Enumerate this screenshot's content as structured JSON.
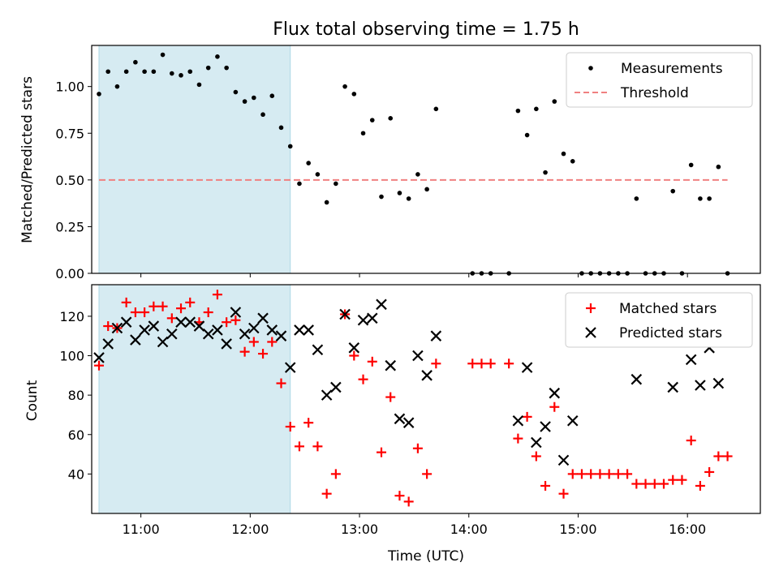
{
  "chart_data": [
    {
      "type": "scatter",
      "title": "Flux total observing time = 1.75 h",
      "xlabel": "",
      "ylabel": "Matched/Predicted stars",
      "xlim": [
        "10:33",
        "16:40"
      ],
      "ylim": [
        0,
        1.22
      ],
      "yticks": [
        "0.00",
        "0.25",
        "0.50",
        "0.75",
        "1.00"
      ],
      "legend_position": "top-right",
      "shaded_region": {
        "start": "10:37",
        "end": "12:22",
        "color": "#add8e6"
      },
      "series": [
        {
          "name": "Measurements",
          "marker": "dot",
          "color": "#000000",
          "points": [
            [
              "10:37",
              0.96
            ],
            [
              "10:42",
              1.08
            ],
            [
              "10:47",
              1.0
            ],
            [
              "10:52",
              1.08
            ],
            [
              "10:57",
              1.13
            ],
            [
              "11:02",
              1.08
            ],
            [
              "11:07",
              1.08
            ],
            [
              "11:12",
              1.17
            ],
            [
              "11:17",
              1.07
            ],
            [
              "11:22",
              1.06
            ],
            [
              "11:27",
              1.08
            ],
            [
              "11:32",
              1.01
            ],
            [
              "11:37",
              1.1
            ],
            [
              "11:42",
              1.16
            ],
            [
              "11:47",
              1.1
            ],
            [
              "11:52",
              0.97
            ],
            [
              "11:57",
              0.92
            ],
            [
              "12:02",
              0.94
            ],
            [
              "12:07",
              0.85
            ],
            [
              "12:12",
              0.95
            ],
            [
              "12:17",
              0.78
            ],
            [
              "12:22",
              0.68
            ],
            [
              "12:27",
              0.48
            ],
            [
              "12:32",
              0.59
            ],
            [
              "12:37",
              0.53
            ],
            [
              "12:42",
              0.38
            ],
            [
              "12:47",
              0.48
            ],
            [
              "12:52",
              1.0
            ],
            [
              "12:57",
              0.96
            ],
            [
              "13:02",
              0.75
            ],
            [
              "13:07",
              0.82
            ],
            [
              "13:12",
              0.41
            ],
            [
              "13:17",
              0.83
            ],
            [
              "13:22",
              0.43
            ],
            [
              "13:27",
              0.4
            ],
            [
              "13:32",
              0.53
            ],
            [
              "13:37",
              0.45
            ],
            [
              "13:42",
              0.88
            ],
            [
              "14:02",
              0.0
            ],
            [
              "14:07",
              0.0
            ],
            [
              "14:12",
              0.0
            ],
            [
              "14:22",
              0.0
            ],
            [
              "14:27",
              0.87
            ],
            [
              "14:32",
              0.74
            ],
            [
              "14:37",
              0.88
            ],
            [
              "14:42",
              0.54
            ],
            [
              "14:47",
              0.92
            ],
            [
              "14:52",
              0.64
            ],
            [
              "14:57",
              0.6
            ],
            [
              "15:02",
              0.0
            ],
            [
              "15:07",
              0.0
            ],
            [
              "15:12",
              0.0
            ],
            [
              "15:17",
              0.0
            ],
            [
              "15:22",
              0.0
            ],
            [
              "15:27",
              0.0
            ],
            [
              "15:32",
              0.4
            ],
            [
              "15:37",
              0.0
            ],
            [
              "15:42",
              0.0
            ],
            [
              "15:47",
              0.0
            ],
            [
              "15:52",
              0.44
            ],
            [
              "15:57",
              0.0
            ],
            [
              "16:02",
              0.58
            ],
            [
              "16:07",
              0.4
            ],
            [
              "16:12",
              0.4
            ],
            [
              "16:17",
              0.57
            ],
            [
              "16:22",
              0.0
            ]
          ]
        },
        {
          "name": "Threshold",
          "marker": "dashed-line",
          "color": "#f08080",
          "points": [
            [
              "10:37",
              0.5
            ],
            [
              "16:22",
              0.5
            ]
          ]
        }
      ]
    },
    {
      "type": "scatter",
      "title": "",
      "xlabel": "Time (UTC)",
      "ylabel": "Count",
      "xlim": [
        "10:33",
        "16:40"
      ],
      "ylim": [
        20,
        136
      ],
      "yticks": [
        "40",
        "60",
        "80",
        "100",
        "120"
      ],
      "xticks": [
        "11:00",
        "12:00",
        "13:00",
        "14:00",
        "15:00",
        "16:00"
      ],
      "legend_position": "top-right",
      "shaded_region": {
        "start": "10:37",
        "end": "12:22",
        "color": "#add8e6"
      },
      "series": [
        {
          "name": "Matched stars",
          "marker": "plus",
          "color": "#ff0000",
          "points": [
            [
              "10:37",
              95
            ],
            [
              "10:42",
              115
            ],
            [
              "10:47",
              114
            ],
            [
              "10:52",
              127
            ],
            [
              "10:57",
              122
            ],
            [
              "11:02",
              122
            ],
            [
              "11:07",
              125
            ],
            [
              "11:12",
              125
            ],
            [
              "11:17",
              119
            ],
            [
              "11:22",
              124
            ],
            [
              "11:27",
              127
            ],
            [
              "11:32",
              117
            ],
            [
              "11:37",
              122
            ],
            [
              "11:42",
              131
            ],
            [
              "11:47",
              117
            ],
            [
              "11:52",
              118
            ],
            [
              "11:57",
              102
            ],
            [
              "12:02",
              107
            ],
            [
              "12:07",
              101
            ],
            [
              "12:12",
              107
            ],
            [
              "12:17",
              86
            ],
            [
              "12:22",
              64
            ],
            [
              "12:27",
              54
            ],
            [
              "12:32",
              66
            ],
            [
              "12:37",
              54
            ],
            [
              "12:42",
              30
            ],
            [
              "12:47",
              40
            ],
            [
              "12:52",
              121
            ],
            [
              "12:57",
              100
            ],
            [
              "13:02",
              88
            ],
            [
              "13:07",
              97
            ],
            [
              "13:12",
              51
            ],
            [
              "13:17",
              79
            ],
            [
              "13:22",
              29
            ],
            [
              "13:27",
              26
            ],
            [
              "13:32",
              53
            ],
            [
              "13:37",
              40
            ],
            [
              "13:42",
              96
            ],
            [
              "14:02",
              96
            ],
            [
              "14:07",
              96
            ],
            [
              "14:12",
              96
            ],
            [
              "14:22",
              96
            ],
            [
              "14:27",
              58
            ],
            [
              "14:32",
              69
            ],
            [
              "14:37",
              49
            ],
            [
              "14:42",
              34
            ],
            [
              "14:47",
              74
            ],
            [
              "14:52",
              30
            ],
            [
              "14:57",
              40
            ],
            [
              "15:02",
              40
            ],
            [
              "15:07",
              40
            ],
            [
              "15:12",
              40
            ],
            [
              "15:17",
              40
            ],
            [
              "15:22",
              40
            ],
            [
              "15:27",
              40
            ],
            [
              "15:32",
              35
            ],
            [
              "15:37",
              35
            ],
            [
              "15:42",
              35
            ],
            [
              "15:47",
              35
            ],
            [
              "15:52",
              37
            ],
            [
              "15:57",
              37
            ],
            [
              "16:02",
              57
            ],
            [
              "16:07",
              34
            ],
            [
              "16:12",
              41
            ],
            [
              "16:17",
              49
            ],
            [
              "16:22",
              49
            ]
          ]
        },
        {
          "name": "Predicted stars",
          "marker": "x",
          "color": "#000000",
          "points": [
            [
              "10:37",
              99
            ],
            [
              "10:42",
              106
            ],
            [
              "10:47",
              114
            ],
            [
              "10:52",
              117
            ],
            [
              "10:57",
              108
            ],
            [
              "11:02",
              113
            ],
            [
              "11:07",
              115
            ],
            [
              "11:12",
              107
            ],
            [
              "11:17",
              111
            ],
            [
              "11:22",
              117
            ],
            [
              "11:27",
              117
            ],
            [
              "11:32",
              115
            ],
            [
              "11:37",
              111
            ],
            [
              "11:42",
              113
            ],
            [
              "11:47",
              106
            ],
            [
              "11:52",
              122
            ],
            [
              "11:57",
              111
            ],
            [
              "12:02",
              114
            ],
            [
              "12:07",
              119
            ],
            [
              "12:12",
              113
            ],
            [
              "12:17",
              110
            ],
            [
              "12:22",
              94
            ],
            [
              "12:27",
              113
            ],
            [
              "12:32",
              113
            ],
            [
              "12:37",
              103
            ],
            [
              "12:42",
              80
            ],
            [
              "12:47",
              84
            ],
            [
              "12:52",
              121
            ],
            [
              "12:57",
              104
            ],
            [
              "13:02",
              118
            ],
            [
              "13:07",
              119
            ],
            [
              "13:12",
              126
            ],
            [
              "13:17",
              95
            ],
            [
              "13:22",
              68
            ],
            [
              "13:27",
              66
            ],
            [
              "13:32",
              100
            ],
            [
              "13:37",
              90
            ],
            [
              "13:42",
              110
            ],
            [
              "14:27",
              67
            ],
            [
              "14:32",
              94
            ],
            [
              "14:37",
              56
            ],
            [
              "14:42",
              64
            ],
            [
              "14:47",
              81
            ],
            [
              "14:52",
              47
            ],
            [
              "14:57",
              67
            ],
            [
              "15:32",
              88
            ],
            [
              "15:52",
              84
            ],
            [
              "16:02",
              98
            ],
            [
              "16:07",
              85
            ],
            [
              "16:12",
              104
            ],
            [
              "16:17",
              86
            ]
          ]
        }
      ]
    }
  ]
}
